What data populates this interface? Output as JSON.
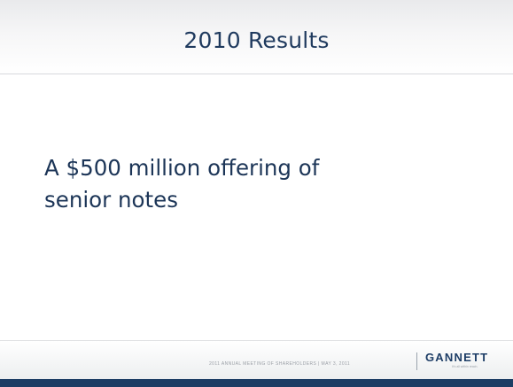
{
  "slide": {
    "title": "2010 Results",
    "body_lines": [
      "A $500 million offering of",
      "senior notes"
    ]
  },
  "footer": {
    "meeting_text": "2011 ANNUAL MEETING OF SHAREHOLDERS  |  MAY 3, 2011",
    "logo_name": "GANNETT",
    "logo_tagline": "It's all within reach."
  },
  "colors": {
    "title": "#1f3a5e",
    "body": "#1c3557",
    "brand_navy": "#1c3d64"
  }
}
